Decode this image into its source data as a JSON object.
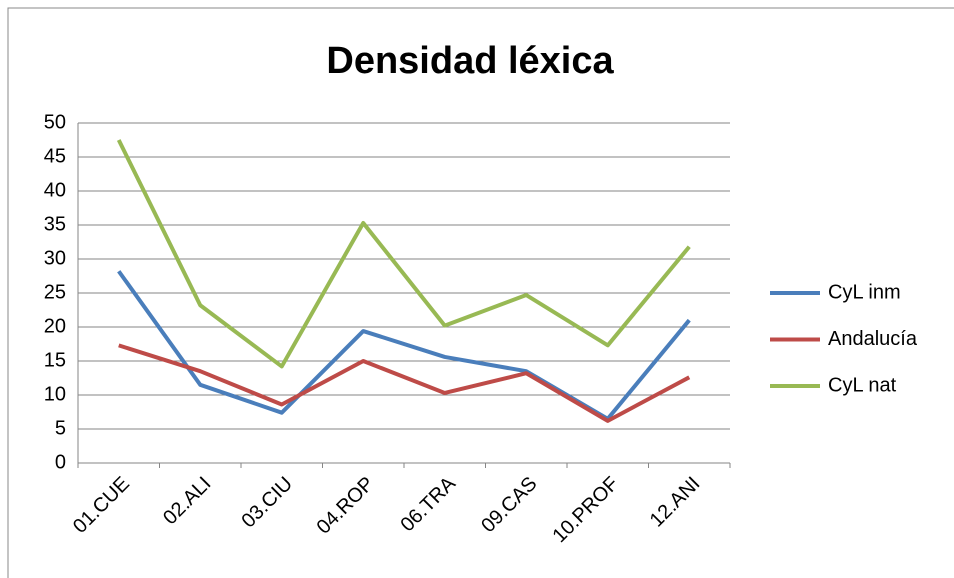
{
  "chart_data": {
    "type": "line",
    "title": "Densidad léxica",
    "categories": [
      "01.CUE",
      "02.ALI",
      "03.CIU",
      "04.ROP",
      "06.TRA",
      "09.CAS",
      "10.PROF",
      "12.ANI"
    ],
    "series": [
      {
        "name": "CyL inm",
        "color": "#4a7ebb",
        "values": [
          28.2,
          11.5,
          7.4,
          19.4,
          15.6,
          13.5,
          6.5,
          21
        ]
      },
      {
        "name": "Andalucía",
        "color": "#be4b48",
        "values": [
          17.3,
          13.5,
          8.6,
          15.0,
          10.3,
          13.2,
          6.2,
          12.6
        ]
      },
      {
        "name": "CyL nat",
        "color": "#98b954",
        "values": [
          47.5,
          23.2,
          14.2,
          35.3,
          20.2,
          24.7,
          17.3,
          31.8
        ]
      }
    ],
    "ylim": [
      0,
      50
    ],
    "yticks": [
      0,
      5,
      10,
      15,
      20,
      25,
      30,
      35,
      40,
      45,
      50
    ],
    "grid": true,
    "legend": "right"
  }
}
